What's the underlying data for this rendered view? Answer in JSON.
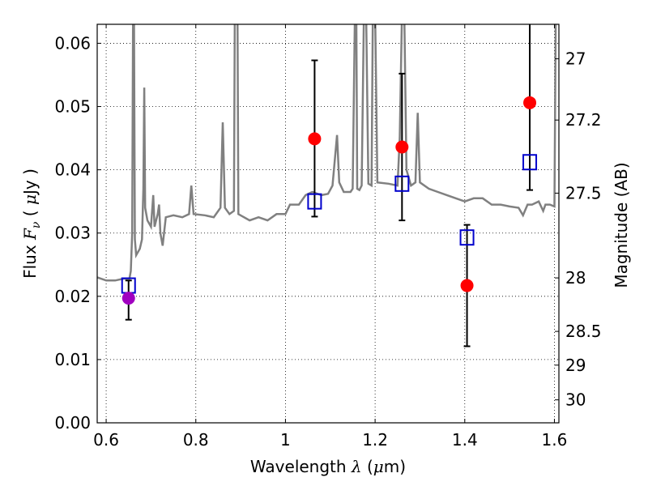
{
  "chart_data": {
    "type": "scatter",
    "xlabel": "Wavelength  λ (μm)",
    "ylabel_left": "Flux  F_ν  ( μJy )",
    "ylabel_left_parts": {
      "pre": "Flux ",
      "sym": "F",
      "sub": "ν",
      "mid": " ( ",
      "mu": "μ",
      "post": "Jy )"
    },
    "xlabel_parts": {
      "pre": "Wavelength  ",
      "sym": "λ",
      "mid": " (",
      "mu": "μ",
      "post": "m)"
    },
    "ylabel_right": "Magnitude (AB)",
    "xlim": [
      0.58,
      1.61
    ],
    "ylim": [
      0.0,
      0.063
    ],
    "x_ticks": [
      0.6,
      0.8,
      1.0,
      1.2,
      1.4,
      1.6
    ],
    "x_tick_labels": [
      "0.6",
      "0.8",
      "1",
      "1.2",
      "1.4",
      "1.6"
    ],
    "y_ticks": [
      0.0,
      0.01,
      0.02,
      0.03,
      0.04,
      0.05,
      0.06
    ],
    "y_tick_labels": [
      "0.00",
      "0.01",
      "0.02",
      "0.03",
      "0.04",
      "0.05",
      "0.06"
    ],
    "mag_ticks": [
      27,
      27.2,
      27.5,
      28,
      28.5,
      29,
      30
    ],
    "mag_tick_labels": [
      "27",
      "27.2",
      "27.5",
      "28",
      "28.5",
      "29",
      "30"
    ],
    "grid": true,
    "colors": {
      "spectrum": "#808080",
      "observed": "#ff0000",
      "observed_first": "#a000c0",
      "model": "#0000cc",
      "errorbar": "#000000"
    },
    "observed": [
      {
        "x": 0.65,
        "y": 0.0197,
        "yerr_low": 0.0163,
        "yerr_high": 0.0225
      },
      {
        "x": 1.065,
        "y": 0.0449,
        "yerr_low": 0.0326,
        "yerr_high": 0.0573
      },
      {
        "x": 1.26,
        "y": 0.0436,
        "yerr_low": 0.032,
        "yerr_high": 0.0552
      },
      {
        "x": 1.405,
        "y": 0.0217,
        "yerr_low": 0.0121,
        "yerr_high": 0.0313
      },
      {
        "x": 1.545,
        "y": 0.0506,
        "yerr_low": 0.0368,
        "yerr_high": 0.064
      }
    ],
    "model": [
      {
        "x": 0.65,
        "y": 0.0217
      },
      {
        "x": 1.065,
        "y": 0.035
      },
      {
        "x": 1.26,
        "y": 0.0378
      },
      {
        "x": 1.405,
        "y": 0.0293
      },
      {
        "x": 1.545,
        "y": 0.0412
      }
    ],
    "spectrum": [
      [
        0.58,
        0.023
      ],
      [
        0.6,
        0.0225
      ],
      [
        0.62,
        0.0225
      ],
      [
        0.64,
        0.0228
      ],
      [
        0.652,
        0.0228
      ],
      [
        0.655,
        0.024
      ],
      [
        0.658,
        0.03
      ],
      [
        0.66,
        0.065
      ],
      [
        0.662,
        0.065
      ],
      [
        0.664,
        0.029
      ],
      [
        0.667,
        0.0265
      ],
      [
        0.675,
        0.0275
      ],
      [
        0.68,
        0.029
      ],
      [
        0.683,
        0.037
      ],
      [
        0.685,
        0.053
      ],
      [
        0.687,
        0.034
      ],
      [
        0.692,
        0.032
      ],
      [
        0.7,
        0.031
      ],
      [
        0.705,
        0.036
      ],
      [
        0.708,
        0.031
      ],
      [
        0.715,
        0.033
      ],
      [
        0.718,
        0.0345
      ],
      [
        0.721,
        0.03
      ],
      [
        0.726,
        0.028
      ],
      [
        0.733,
        0.0325
      ],
      [
        0.75,
        0.0328
      ],
      [
        0.77,
        0.0325
      ],
      [
        0.785,
        0.033
      ],
      [
        0.79,
        0.0375
      ],
      [
        0.795,
        0.033
      ],
      [
        0.82,
        0.0328
      ],
      [
        0.84,
        0.0325
      ],
      [
        0.855,
        0.034
      ],
      [
        0.86,
        0.0475
      ],
      [
        0.865,
        0.034
      ],
      [
        0.875,
        0.033
      ],
      [
        0.885,
        0.0335
      ],
      [
        0.887,
        0.065
      ],
      [
        0.893,
        0.065
      ],
      [
        0.895,
        0.033
      ],
      [
        0.92,
        0.032
      ],
      [
        0.94,
        0.0325
      ],
      [
        0.96,
        0.032
      ],
      [
        0.98,
        0.033
      ],
      [
        1.0,
        0.033
      ],
      [
        1.01,
        0.0345
      ],
      [
        1.03,
        0.0345
      ],
      [
        1.045,
        0.036
      ],
      [
        1.06,
        0.0365
      ],
      [
        1.08,
        0.036
      ],
      [
        1.095,
        0.0362
      ],
      [
        1.105,
        0.0375
      ],
      [
        1.115,
        0.0455
      ],
      [
        1.12,
        0.038
      ],
      [
        1.13,
        0.0365
      ],
      [
        1.145,
        0.0365
      ],
      [
        1.15,
        0.037
      ],
      [
        1.155,
        0.065
      ],
      [
        1.158,
        0.065
      ],
      [
        1.16,
        0.037
      ],
      [
        1.165,
        0.0368
      ],
      [
        1.17,
        0.0375
      ],
      [
        1.175,
        0.065
      ],
      [
        1.18,
        0.065
      ],
      [
        1.185,
        0.0378
      ],
      [
        1.192,
        0.0375
      ],
      [
        1.195,
        0.065
      ],
      [
        1.2,
        0.065
      ],
      [
        1.205,
        0.038
      ],
      [
        1.23,
        0.0378
      ],
      [
        1.25,
        0.0375
      ],
      [
        1.255,
        0.045
      ],
      [
        1.26,
        0.065
      ],
      [
        1.265,
        0.065
      ],
      [
        1.27,
        0.04
      ],
      [
        1.28,
        0.0375
      ],
      [
        1.29,
        0.038
      ],
      [
        1.295,
        0.049
      ],
      [
        1.3,
        0.038
      ],
      [
        1.32,
        0.037
      ],
      [
        1.34,
        0.0365
      ],
      [
        1.36,
        0.036
      ],
      [
        1.38,
        0.0355
      ],
      [
        1.4,
        0.035
      ],
      [
        1.42,
        0.0355
      ],
      [
        1.44,
        0.0355
      ],
      [
        1.46,
        0.0345
      ],
      [
        1.48,
        0.0345
      ],
      [
        1.5,
        0.0342
      ],
      [
        1.52,
        0.034
      ],
      [
        1.53,
        0.0328
      ],
      [
        1.54,
        0.0345
      ],
      [
        1.55,
        0.0345
      ],
      [
        1.565,
        0.035
      ],
      [
        1.575,
        0.0335
      ],
      [
        1.58,
        0.0345
      ],
      [
        1.59,
        0.0345
      ],
      [
        1.6,
        0.0342
      ],
      [
        1.603,
        0.065
      ],
      [
        1.61,
        0.065
      ]
    ]
  }
}
